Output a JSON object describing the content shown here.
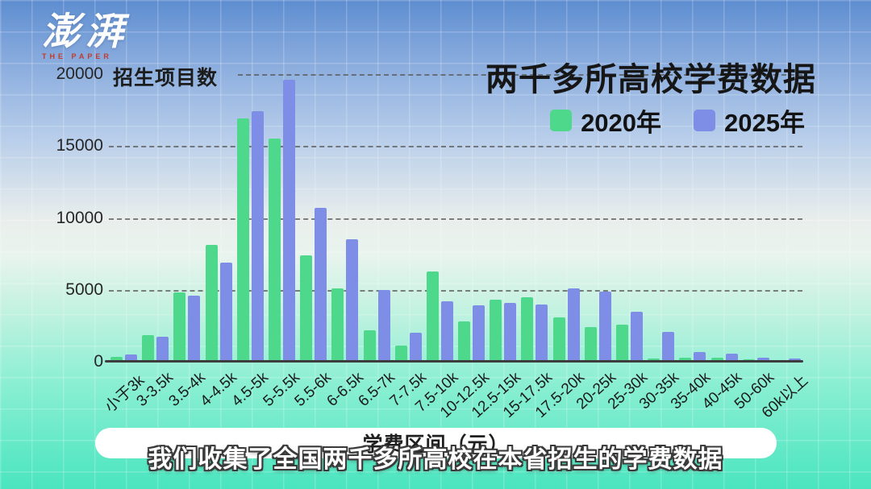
{
  "logo": {
    "brand": "澎湃",
    "sub": "THE PAPER"
  },
  "header": {
    "title": "两千多所高校学费数据"
  },
  "legend": [
    {
      "label": "2020年",
      "color": "#4ed88c"
    },
    {
      "label": "2025年",
      "color": "#7e8ee6"
    }
  ],
  "subtitle": "我们收集了全国两千多所高校在本省招生的学费数据",
  "chart_data": {
    "type": "bar",
    "title": "两千多所高校学费数据",
    "ylabel": "招生项目数",
    "xlabel": "学费区间（元）",
    "ylim": [
      0,
      20000
    ],
    "yticks": [
      0,
      5000,
      10000,
      15000,
      20000
    ],
    "grid": "horizontal dashed",
    "legend_position": "top-right",
    "bar_colors": {
      "2020年": "#4ed88c",
      "2025年": "#7e8ee6"
    },
    "categories": [
      "小于3k",
      "3-3.5k",
      "3.5-4k",
      "4-4.5k",
      "4.5-5k",
      "5-5.5k",
      "5.5-6k",
      "6-6.5k",
      "6.5-7k",
      "7-7.5k",
      "7.5-10k",
      "10-12.5k",
      "12.5-15k",
      "15-17.5k",
      "17.5-20k",
      "20-25k",
      "25-30k",
      "30-35k",
      "35-40k",
      "40-45k",
      "50-60k",
      "60k以上"
    ],
    "series": [
      {
        "name": "2020年",
        "color": "#4ed88c",
        "values": [
          350,
          1850,
          4800,
          8100,
          16900,
          15500,
          7400,
          5100,
          2200,
          1100,
          6300,
          2800,
          4300,
          4500,
          3100,
          2400,
          2600,
          250,
          300,
          300,
          150,
          100
        ]
      },
      {
        "name": "2025年",
        "color": "#7e8ee6",
        "values": [
          500,
          1750,
          4600,
          6900,
          17400,
          19600,
          10700,
          8500,
          5000,
          2000,
          4200,
          3900,
          4100,
          4000,
          5100,
          4900,
          3500,
          2100,
          650,
          550,
          300,
          200
        ]
      }
    ]
  }
}
